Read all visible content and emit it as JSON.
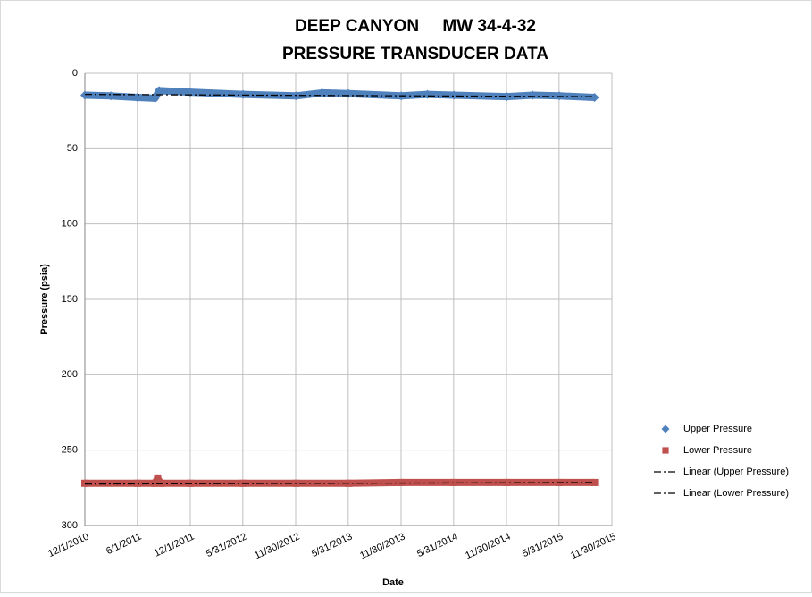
{
  "chart_data": {
    "type": "line",
    "title": [
      "DEEP CANYON     MW 34-4-32",
      "PRESSURE TRANSDUCER DATA"
    ],
    "xlabel": "Date",
    "ylabel": "Pressure (psia)",
    "ylim": [
      0,
      300
    ],
    "yticks": [
      0,
      50,
      100,
      150,
      200,
      250,
      300
    ],
    "y_inverted": true,
    "xlim": [
      "12/1/2010",
      "11/30/2015"
    ],
    "xticks": [
      "12/1/2010",
      "6/1/2011",
      "12/1/2011",
      "5/31/2012",
      "11/30/2012",
      "5/31/2013",
      "11/30/2013",
      "5/31/2014",
      "11/30/2014",
      "5/31/2015",
      "11/30/2015"
    ],
    "grid": true,
    "legend": "right",
    "series": [
      {
        "name": "Upper Pressure",
        "color": "#4f81bd",
        "marker": "diamond",
        "x": [
          "12/1/2010",
          "3/1/2011",
          "6/1/2011",
          "8/1/2011",
          "8/15/2011",
          "12/1/2011",
          "6/1/2012",
          "12/1/2012",
          "3/1/2013",
          "6/1/2013",
          "12/1/2013",
          "3/1/2014",
          "6/1/2014",
          "12/1/2014",
          "3/1/2015",
          "6/1/2015",
          "10/1/2015"
        ],
        "values": [
          14.5,
          15,
          16,
          16.5,
          11.5,
          12.5,
          14,
          15,
          13,
          13.5,
          15,
          14,
          14.5,
          15.5,
          14.5,
          15,
          16
        ]
      },
      {
        "name": "Lower Pressure",
        "color": "#c0504d",
        "marker": "square",
        "x": [
          "12/1/2010",
          "6/1/2011",
          "8/1/2011",
          "8/10/2011",
          "8/20/2011",
          "12/1/2011",
          "6/1/2012",
          "12/1/2012",
          "6/1/2013",
          "12/1/2013",
          "6/1/2014",
          "12/1/2014",
          "6/1/2015",
          "10/1/2015"
        ],
        "values": [
          272,
          272,
          272,
          268.5,
          272,
          272,
          272,
          272,
          272,
          271.5,
          271.5,
          271.5,
          271.5,
          271.5
        ]
      },
      {
        "name": "Linear (Upper Pressure)",
        "color": "#000000",
        "trendline": true,
        "x": [
          "12/1/2010",
          "10/1/2015"
        ],
        "values": [
          14,
          15.5
        ]
      },
      {
        "name": "Linear (Lower Pressure)",
        "color": "#000000",
        "trendline": true,
        "x": [
          "12/1/2010",
          "10/1/2015"
        ],
        "values": [
          272.5,
          271.5
        ]
      }
    ]
  }
}
